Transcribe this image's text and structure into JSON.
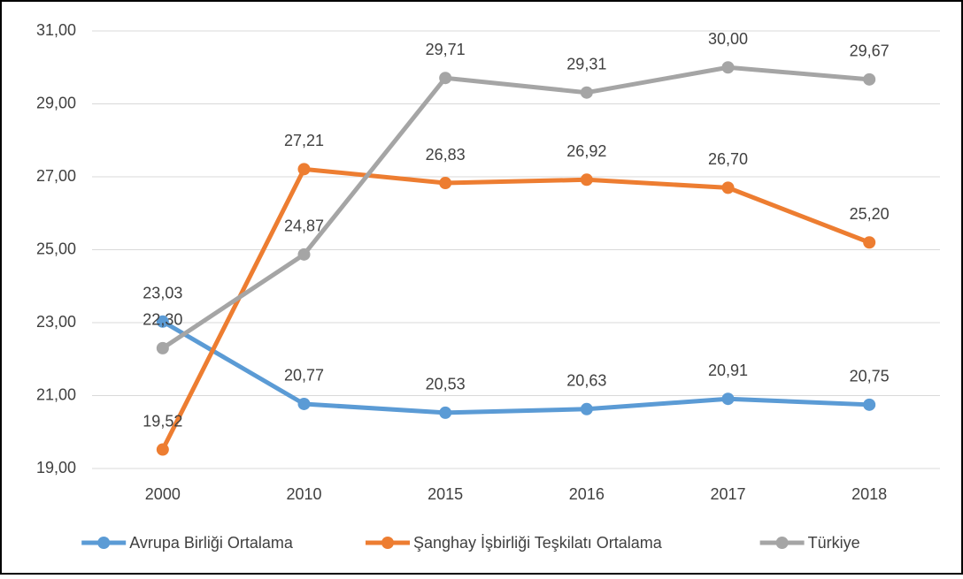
{
  "chart_data": {
    "type": "line",
    "categories": [
      "2000",
      "2010",
      "2015",
      "2016",
      "2017",
      "2018"
    ],
    "series": [
      {
        "name": "Avrupa Birliği Ortalama",
        "color": "#5b9bd5",
        "values": [
          23.03,
          20.77,
          20.53,
          20.63,
          20.91,
          20.75
        ],
        "value_labels": [
          "23,03",
          "20,77",
          "20,53",
          "20,63",
          "20,91",
          "20,75"
        ]
      },
      {
        "name": "Şanghay İşbirliği Teşkilatı Ortalama",
        "color": "#ed7d31",
        "values": [
          19.52,
          27.21,
          26.83,
          26.92,
          26.7,
          25.2
        ],
        "value_labels": [
          "19,52",
          "27,21",
          "26,83",
          "26,92",
          "26,70",
          "25,20"
        ]
      },
      {
        "name": "Türkiye",
        "color": "#a5a5a5",
        "values": [
          22.3,
          24.87,
          29.71,
          29.31,
          30.0,
          29.67
        ],
        "value_labels": [
          "22,30",
          "24,87",
          "29,71",
          "29,31",
          "30,00",
          "29,67"
        ]
      }
    ],
    "ylim": [
      19,
      31
    ],
    "yticks": [
      {
        "value": 19,
        "label": "19,00"
      },
      {
        "value": 21,
        "label": "21,00"
      },
      {
        "value": 23,
        "label": "23,00"
      },
      {
        "value": 25,
        "label": "25,00"
      },
      {
        "value": 27,
        "label": "27,00"
      },
      {
        "value": 29,
        "label": "29,00"
      },
      {
        "value": 31,
        "label": "31,00"
      }
    ],
    "grid": true,
    "legend": "bottom"
  }
}
